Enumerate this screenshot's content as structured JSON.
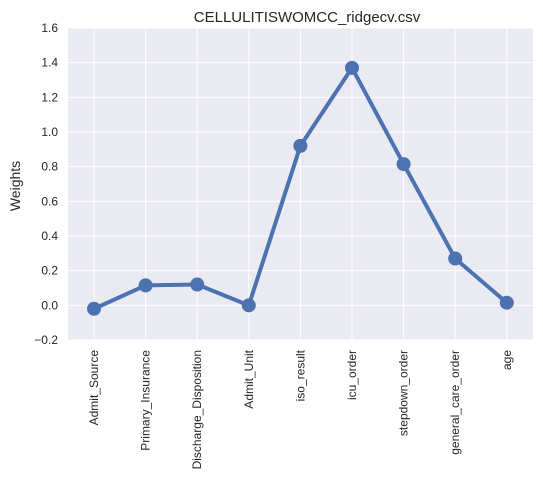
{
  "chart_data": {
    "type": "line",
    "title": "CELLULITISWOMCC_ridgecv.csv",
    "xlabel": "",
    "ylabel": "Weights",
    "categories": [
      "Admit_Source",
      "Primary_Insurance",
      "Discharge_Disposition",
      "Admit_Unit",
      "iso_result",
      "icu_order",
      "stepdown_order",
      "general_care_order",
      "age"
    ],
    "values": [
      -0.02,
      0.115,
      0.12,
      0.0,
      0.92,
      1.37,
      0.815,
      0.27,
      0.015
    ],
    "ylim": [
      -0.2,
      1.6
    ],
    "yticks": [
      "−0.2",
      "0.0",
      "0.2",
      "0.4",
      "0.6",
      "0.8",
      "1.0",
      "1.2",
      "1.4",
      "1.6"
    ],
    "ytick_values": [
      -0.2,
      0.0,
      0.2,
      0.4,
      0.6,
      0.8,
      1.0,
      1.2,
      1.4,
      1.6
    ],
    "grid": true,
    "style": {
      "background": "#eaeaf2",
      "grid_color": "#ffffff",
      "line_color": "#4c72b0"
    }
  }
}
